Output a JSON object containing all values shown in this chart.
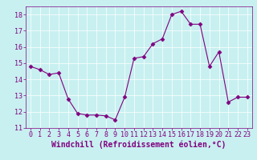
{
  "x": [
    0,
    1,
    2,
    3,
    4,
    5,
    6,
    7,
    8,
    9,
    10,
    11,
    12,
    13,
    14,
    15,
    16,
    17,
    18,
    19,
    20,
    21,
    22,
    23
  ],
  "y": [
    14.8,
    14.6,
    14.3,
    14.4,
    12.8,
    11.9,
    11.8,
    11.8,
    11.75,
    11.5,
    12.9,
    15.3,
    15.4,
    16.2,
    16.5,
    18.0,
    18.2,
    17.4,
    17.4,
    14.8,
    15.7,
    12.6,
    12.9,
    12.9
  ],
  "line_color": "#800080",
  "marker": "D",
  "marker_size": 2.5,
  "background_color": "#c8f0f0",
  "grid_color": "#ffffff",
  "xlabel": "Windchill (Refroidissement éolien,°C)",
  "ylim": [
    11,
    18.5
  ],
  "xlim": [
    -0.5,
    23.5
  ],
  "yticks": [
    11,
    12,
    13,
    14,
    15,
    16,
    17,
    18
  ],
  "xticks": [
    0,
    1,
    2,
    3,
    4,
    5,
    6,
    7,
    8,
    9,
    10,
    11,
    12,
    13,
    14,
    15,
    16,
    17,
    18,
    19,
    20,
    21,
    22,
    23
  ],
  "tick_color": "#800080",
  "label_color": "#800080",
  "tick_fontsize": 6,
  "xlabel_fontsize": 7
}
